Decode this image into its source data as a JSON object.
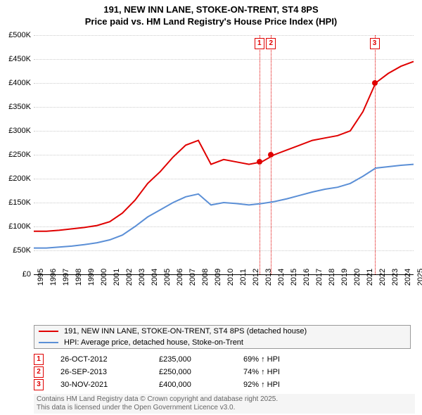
{
  "title_line1": "191, NEW INN LANE, STOKE-ON-TRENT, ST4 8PS",
  "title_line2": "Price paid vs. HM Land Registry's House Price Index (HPI)",
  "chart": {
    "type": "line",
    "background_color": "#ffffff",
    "grid_color": "#cccccc",
    "x_years": [
      "1995",
      "1996",
      "1997",
      "1998",
      "1999",
      "2000",
      "2001",
      "2002",
      "2003",
      "2004",
      "2005",
      "2006",
      "2007",
      "2008",
      "2009",
      "2010",
      "2011",
      "2012",
      "2013",
      "2014",
      "2015",
      "2016",
      "2017",
      "2018",
      "2019",
      "2020",
      "2021",
      "2022",
      "2023",
      "2024",
      "2025"
    ],
    "y_ticks": [
      0,
      50000,
      100000,
      150000,
      200000,
      250000,
      300000,
      350000,
      400000,
      450000,
      500000
    ],
    "y_labels": [
      "£0",
      "£50K",
      "£100K",
      "£150K",
      "£200K",
      "£250K",
      "£300K",
      "£350K",
      "£400K",
      "£450K",
      "£500K"
    ],
    "ylim": [
      0,
      500000
    ],
    "series": [
      {
        "name": "191, NEW INN LANE, STOKE-ON-TRENT, ST4 8PS (detached house)",
        "color": "#e00000",
        "line_width": 2,
        "data": [
          90000,
          90000,
          92000,
          95000,
          98000,
          102000,
          110000,
          128000,
          155000,
          190000,
          215000,
          245000,
          270000,
          280000,
          230000,
          240000,
          235000,
          230000,
          235000,
          250000,
          260000,
          270000,
          280000,
          285000,
          290000,
          300000,
          340000,
          400000,
          420000,
          435000,
          445000
        ]
      },
      {
        "name": "HPI: Average price, detached house, Stoke-on-Trent",
        "color": "#5b8fd6",
        "line_width": 2,
        "data": [
          55000,
          55000,
          57000,
          59000,
          62000,
          66000,
          72000,
          82000,
          100000,
          120000,
          135000,
          150000,
          162000,
          168000,
          145000,
          150000,
          148000,
          145000,
          148000,
          152000,
          158000,
          165000,
          172000,
          178000,
          182000,
          190000,
          205000,
          222000,
          225000,
          228000,
          230000
        ]
      }
    ],
    "transactions": [
      {
        "idx": "1",
        "date": "26-OCT-2012",
        "price": "£235,000",
        "hpi": "69% ↑ HPI",
        "year": 2012.82,
        "value": 235000
      },
      {
        "idx": "2",
        "date": "26-SEP-2013",
        "price": "£250,000",
        "hpi": "74% ↑ HPI",
        "year": 2013.74,
        "value": 250000
      },
      {
        "idx": "3",
        "date": "30-NOV-2021",
        "price": "£400,000",
        "hpi": "92% ↑ HPI",
        "year": 2021.92,
        "value": 400000
      }
    ]
  },
  "legend": {
    "items": [
      {
        "color": "#e00000",
        "label": "191, NEW INN LANE, STOKE-ON-TRENT, ST4 8PS (detached house)"
      },
      {
        "color": "#5b8fd6",
        "label": "HPI: Average price, detached house, Stoke-on-Trent"
      }
    ]
  },
  "footer_line1": "Contains HM Land Registry data © Crown copyright and database right 2025.",
  "footer_line2": "This data is licensed under the Open Government Licence v3.0."
}
